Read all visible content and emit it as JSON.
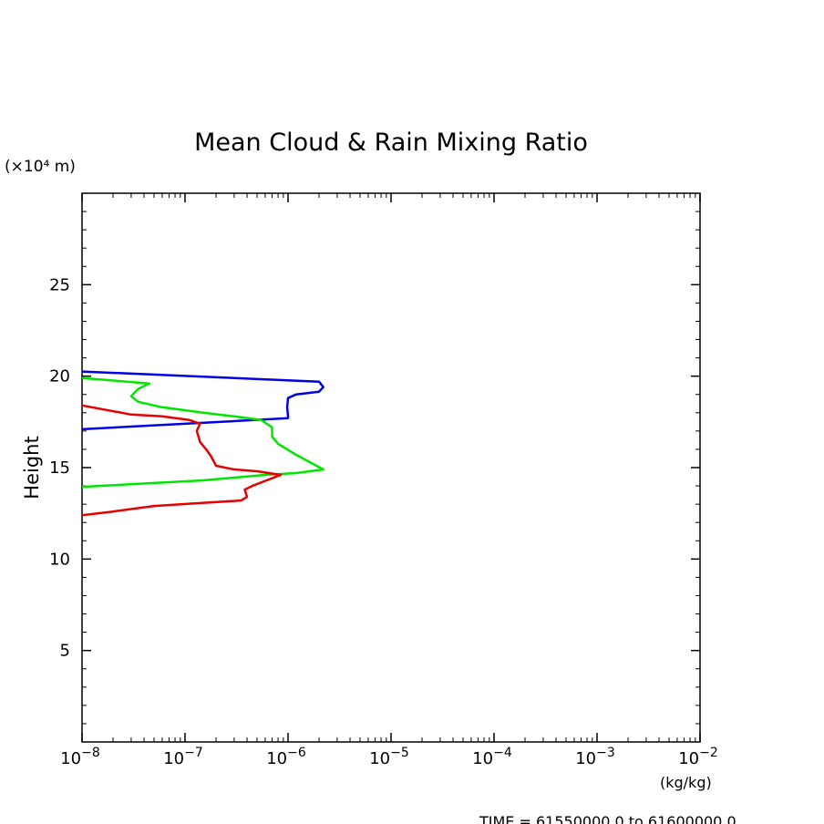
{
  "chart_data": {
    "type": "line",
    "title": "Mean Cloud & Rain Mixing Ratio",
    "ylabel": "Height",
    "y_unit_label": "(×10⁴ m)",
    "x_unit_label": "(kg/kg)",
    "footer": "TIME = 61550000.0 to 61600000.0",
    "x_scale": "log",
    "xlim": [
      1e-08,
      0.01
    ],
    "ylim": [
      0,
      30
    ],
    "x_tick_values": [
      1e-08,
      1e-07,
      1e-06,
      1e-05,
      0.0001,
      0.001,
      0.01
    ],
    "x_tick_labels": [
      {
        "base": "10",
        "exp": "−8"
      },
      {
        "base": "10",
        "exp": "−7"
      },
      {
        "base": "10",
        "exp": "−6"
      },
      {
        "base": "10",
        "exp": "−5"
      },
      {
        "base": "10",
        "exp": "−4"
      },
      {
        "base": "10",
        "exp": "−3"
      },
      {
        "base": "10",
        "exp": "−2"
      }
    ],
    "y_ticks": [
      5,
      10,
      15,
      20,
      25
    ],
    "grid": false,
    "series": [
      {
        "color": "#0000e6",
        "points": [
          [
            1e-08,
            20.25
          ],
          [
            2e-06,
            19.7
          ],
          [
            2.2e-06,
            19.4
          ],
          [
            2e-06,
            19.15
          ],
          [
            1.2e-06,
            19.0
          ],
          [
            1e-06,
            18.8
          ],
          [
            9.8e-07,
            18.3
          ],
          [
            1e-06,
            17.8
          ],
          [
            1e-06,
            17.7
          ],
          [
            1e-08,
            17.1
          ]
        ]
      },
      {
        "color": "#00e600",
        "points": [
          [
            1e-08,
            19.9
          ],
          [
            4.5e-08,
            19.6
          ],
          [
            3.5e-08,
            19.3
          ],
          [
            3e-08,
            18.9
          ],
          [
            3.5e-08,
            18.6
          ],
          [
            6e-08,
            18.3
          ],
          [
            1.5e-07,
            18.0
          ],
          [
            3e-07,
            17.8
          ],
          [
            5.5e-07,
            17.6
          ],
          [
            7e-07,
            17.2
          ],
          [
            7e-07,
            16.7
          ],
          [
            8e-07,
            16.3
          ],
          [
            1.2e-06,
            15.7
          ],
          [
            2.2e-06,
            14.9
          ],
          [
            1.2e-06,
            14.7
          ],
          [
            6e-07,
            14.6
          ],
          [
            1.5e-07,
            14.3
          ],
          [
            1e-08,
            13.95
          ]
        ]
      },
      {
        "color": "#e60000",
        "points": [
          [
            1e-08,
            18.4
          ],
          [
            3e-08,
            17.9
          ],
          [
            6e-08,
            17.8
          ],
          [
            1.1e-07,
            17.6
          ],
          [
            1.4e-07,
            17.4
          ],
          [
            1.3e-07,
            17.0
          ],
          [
            1.4e-07,
            16.4
          ],
          [
            1.6e-07,
            16.0
          ],
          [
            1.8e-07,
            15.6
          ],
          [
            2e-07,
            15.1
          ],
          [
            3e-07,
            14.9
          ],
          [
            5e-07,
            14.8
          ],
          [
            8.5e-07,
            14.6
          ],
          [
            4.5e-07,
            14.0
          ],
          [
            3.8e-07,
            13.8
          ],
          [
            4e-07,
            13.4
          ],
          [
            3.5e-07,
            13.2
          ],
          [
            1.3e-07,
            13.05
          ],
          [
            5e-08,
            12.9
          ],
          [
            2e-08,
            12.6
          ],
          [
            1e-08,
            12.4
          ]
        ]
      }
    ]
  }
}
